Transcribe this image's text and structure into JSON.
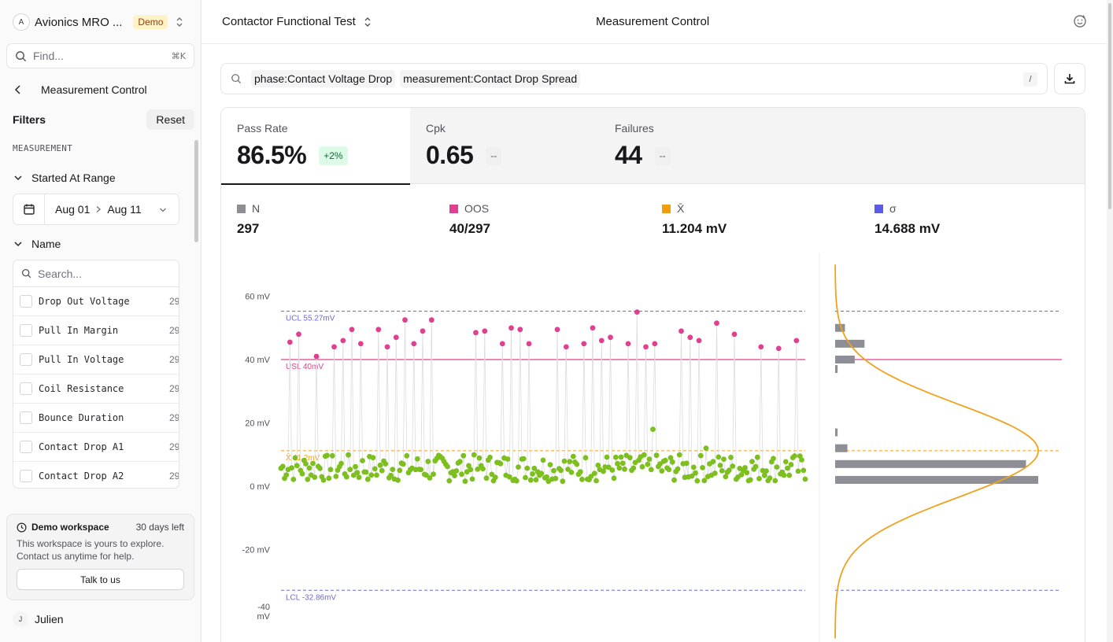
{
  "sidebar": {
    "workspace": {
      "avatar": "A",
      "name": "Avionics MRO ...",
      "badge": "Demo"
    },
    "find": {
      "placeholder": "Find...",
      "shortcut": "⌘K"
    },
    "back_title": "Measurement Control",
    "filters_label": "Filters",
    "reset_label": "Reset",
    "section_label": "MEASUREMENT",
    "started_at": {
      "label": "Started At Range",
      "from": "Aug 01",
      "to": "Aug 11"
    },
    "name_group": {
      "label": "Name",
      "search_placeholder": "Search...",
      "items": [
        {
          "label": "Drop Out Voltage",
          "count": "29"
        },
        {
          "label": "Pull In Margin",
          "count": "29"
        },
        {
          "label": "Pull In Voltage",
          "count": "29"
        },
        {
          "label": "Coil Resistance",
          "count": "29"
        },
        {
          "label": "Bounce Duration",
          "count": "29"
        },
        {
          "label": "Contact Drop A1",
          "count": "29"
        },
        {
          "label": "Contact Drop A2",
          "count": "29"
        }
      ]
    },
    "demo": {
      "title": "Demo workspace",
      "days_left": "30 days left",
      "line1": "This workspace is yours to explore.",
      "line2": "Contact us anytime for help.",
      "button": "Talk to us"
    },
    "user": {
      "avatar": "J",
      "name": "Julien"
    }
  },
  "header": {
    "test_name": "Contactor Functional Test",
    "center_title": "Measurement Control"
  },
  "query": {
    "chips": [
      "phase:Contact Voltage Drop",
      "measurement:Contact Drop Spread"
    ],
    "shortcut": "/"
  },
  "kpis": [
    {
      "label": "Pass Rate",
      "value": "86.5%",
      "delta": "+2%"
    },
    {
      "label": "Cpk",
      "value": "0.65",
      "delta": "--"
    },
    {
      "label": "Failures",
      "value": "44",
      "delta": "--"
    }
  ],
  "stats": [
    {
      "label": "N",
      "value": "297",
      "color": "#8e8e93"
    },
    {
      "label": "OOS",
      "value": "40/297",
      "color": "#e0408f"
    },
    {
      "label": "X̄",
      "value": "11.204 mV",
      "color": "#f29d0c"
    },
    {
      "label": "σ",
      "value": "14.688 mV",
      "color": "#5b5be6"
    }
  ],
  "colors": {
    "pass": "#7cbf1e",
    "fail": "#e0408f",
    "mean": "#f29d0c",
    "limits": "#6b6bd6",
    "hist_bar": "#8e8e96",
    "curve": "#f0a21e"
  },
  "chart_data": {
    "type": "scatter",
    "title": "",
    "yunit": "mV",
    "y_ticks": [
      "60 mV",
      "40 mV",
      "20 mV",
      "0 mV",
      "-20 mV",
      "-40 mV"
    ],
    "ylim": [
      -48,
      72
    ],
    "limits": [
      {
        "label": "UCL 55.27mV",
        "value": 55.27,
        "style": "dashed"
      },
      {
        "label": "USL 40mV",
        "value": 40,
        "style": "solid"
      },
      {
        "label": "X̄ 11.2mV",
        "value": 11.204,
        "style": "dashed"
      },
      {
        "label": "LCL -32.86mV",
        "value": -32.86,
        "style": "dashed"
      }
    ],
    "outliers": [
      [
        1,
        45.5
      ],
      [
        2,
        48
      ],
      [
        4,
        41
      ],
      [
        6,
        44
      ],
      [
        7,
        46
      ],
      [
        8,
        49.5
      ],
      [
        9,
        45
      ],
      [
        11,
        49.5
      ],
      [
        12,
        44
      ],
      [
        13,
        47
      ],
      [
        14,
        52.5
      ],
      [
        15,
        45
      ],
      [
        16,
        49
      ],
      [
        17,
        52.5
      ],
      [
        22,
        48.5
      ],
      [
        23,
        49
      ],
      [
        25,
        45
      ],
      [
        26,
        50
      ],
      [
        27,
        49.5
      ],
      [
        28,
        45
      ],
      [
        31,
        49.5
      ],
      [
        32,
        44
      ],
      [
        34,
        45
      ],
      [
        35,
        50
      ],
      [
        36,
        46
      ],
      [
        37,
        47
      ],
      [
        39,
        45
      ],
      [
        40,
        55
      ],
      [
        41,
        44
      ],
      [
        42,
        45
      ],
      [
        45,
        49
      ],
      [
        46,
        47
      ],
      [
        47,
        46
      ],
      [
        49,
        51.5
      ],
      [
        51,
        48
      ],
      [
        54,
        44
      ],
      [
        56,
        43.5
      ],
      [
        58,
        46
      ]
    ],
    "histogram": [
      {
        "bin_center": 50,
        "count": 4
      },
      {
        "bin_center": 45,
        "count": 12
      },
      {
        "bin_center": 40,
        "count": 8
      },
      {
        "bin_center": 37,
        "count": 1
      },
      {
        "bin_center": 17,
        "count": 1
      },
      {
        "bin_center": 12,
        "count": 5
      },
      {
        "bin_center": 7,
        "count": 78
      },
      {
        "bin_center": 2,
        "count": 83
      }
    ]
  }
}
